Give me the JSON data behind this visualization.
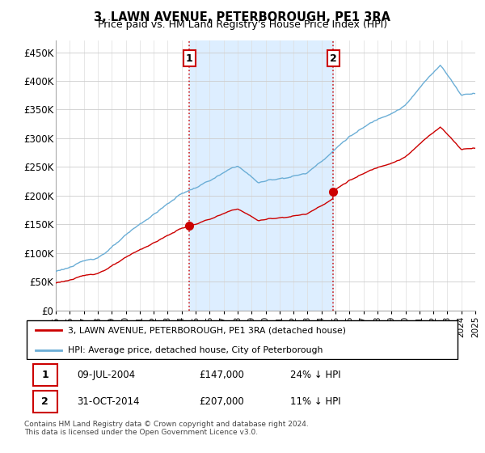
{
  "title": "3, LAWN AVENUE, PETERBOROUGH, PE1 3RA",
  "subtitle": "Price paid vs. HM Land Registry's House Price Index (HPI)",
  "ylabel_ticks": [
    "£0",
    "£50K",
    "£100K",
    "£150K",
    "£200K",
    "£250K",
    "£300K",
    "£350K",
    "£400K",
    "£450K"
  ],
  "ytick_values": [
    0,
    50000,
    100000,
    150000,
    200000,
    250000,
    300000,
    350000,
    400000,
    450000
  ],
  "ylim": [
    0,
    470000
  ],
  "sale1_date": 2004.55,
  "sale1_price": 147000,
  "sale1_label": "1",
  "sale2_date": 2014.83,
  "sale2_price": 207000,
  "sale2_label": "2",
  "hpi_color": "#6baed6",
  "hpi_fill_color": "#ddeeff",
  "price_color": "#cc0000",
  "dot_color": "#cc0000",
  "vline_color": "#cc0000",
  "legend_label1": "3, LAWN AVENUE, PETERBOROUGH, PE1 3RA (detached house)",
  "legend_label2": "HPI: Average price, detached house, City of Peterborough",
  "table_row1": [
    "1",
    "09-JUL-2004",
    "£147,000",
    "24% ↓ HPI"
  ],
  "table_row2": [
    "2",
    "31-OCT-2014",
    "£207,000",
    "11% ↓ HPI"
  ],
  "footnote": "Contains HM Land Registry data © Crown copyright and database right 2024.\nThis data is licensed under the Open Government Licence v3.0.",
  "xstart": 1995,
  "xend": 2025
}
